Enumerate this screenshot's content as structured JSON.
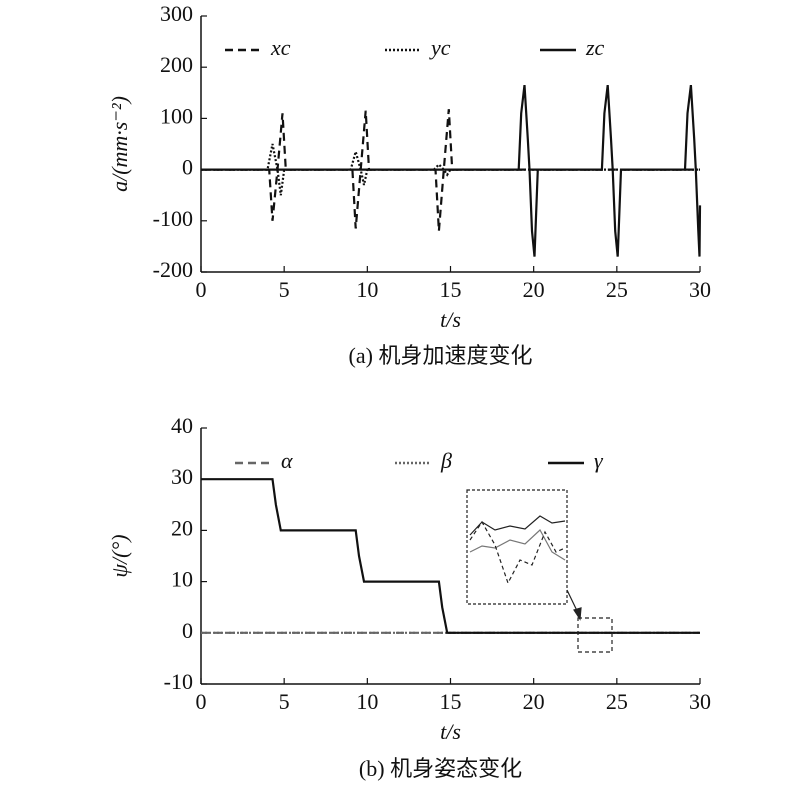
{
  "chart_data": [
    {
      "type": "line",
      "title": "(a) 机身加速度变化",
      "x_label": "t/s",
      "y_label": "a/(mm·s⁻²)",
      "xlim": [
        0,
        30
      ],
      "xticks": [
        0,
        5,
        10,
        15,
        20,
        25,
        30
      ],
      "ylim": [
        -200,
        300
      ],
      "yticks": [
        -200,
        -100,
        0,
        100,
        200,
        300
      ],
      "series": [
        {
          "name": "xc",
          "color": "#111111",
          "style": "dashed",
          "x": [
            0,
            4.1,
            4.3,
            4.6,
            4.9,
            5.1,
            9.1,
            9.3,
            9.6,
            9.9,
            10.1,
            14.1,
            14.3,
            14.6,
            14.9,
            15.1,
            30
          ],
          "values": [
            0,
            0,
            -100,
            0,
            110,
            0,
            0,
            -115,
            0,
            115,
            0,
            0,
            -120,
            0,
            118,
            0,
            0
          ]
        },
        {
          "name": "yc",
          "color": "#111111",
          "style": "dotted",
          "x": [
            0,
            4.0,
            4.3,
            4.6,
            4.8,
            5.0,
            9.0,
            9.3,
            9.6,
            9.8,
            10.0,
            14.0,
            14.3,
            14.6,
            14.8,
            15.0,
            30
          ],
          "values": [
            0,
            0,
            50,
            0,
            -50,
            0,
            0,
            35,
            0,
            -30,
            0,
            0,
            10,
            0,
            -10,
            0,
            0
          ]
        },
        {
          "name": "zc",
          "color": "#111111",
          "style": "solid",
          "x": [
            0,
            19.1,
            19.25,
            19.45,
            19.65,
            19.75,
            19.9,
            20.05,
            20.25,
            24.1,
            24.25,
            24.45,
            24.65,
            24.75,
            24.9,
            25.05,
            25.25,
            29.1,
            29.25,
            29.45,
            29.65,
            29.75,
            29.9,
            29.97,
            30
          ],
          "values": [
            0,
            0,
            110,
            165,
            60,
            0,
            -120,
            -170,
            0,
            0,
            110,
            165,
            60,
            0,
            -120,
            -170,
            0,
            0,
            110,
            165,
            60,
            0,
            -120,
            -170,
            -70
          ]
        }
      ]
    },
    {
      "type": "line",
      "title": "(b) 机身姿态变化",
      "x_label": "t/s",
      "y_label": "ψ/(°)",
      "xlim": [
        0,
        30
      ],
      "xticks": [
        0,
        5,
        10,
        15,
        20,
        25,
        30
      ],
      "ylim": [
        -10,
        40
      ],
      "yticks": [
        -10,
        0,
        10,
        20,
        30,
        40
      ],
      "series": [
        {
          "name": "α",
          "color": "#666666",
          "style": "dashed",
          "x": [
            0,
            30
          ],
          "values": [
            0,
            0
          ]
        },
        {
          "name": "β",
          "color": "#666666",
          "style": "dotted",
          "x": [
            0,
            30
          ],
          "values": [
            0,
            0
          ]
        },
        {
          "name": "γ",
          "color": "#111111",
          "style": "solid",
          "x": [
            0,
            4.3,
            4.5,
            4.8,
            9.3,
            9.5,
            9.8,
            14.3,
            14.5,
            14.8,
            30
          ],
          "values": [
            30,
            30,
            25,
            20,
            20,
            15,
            10,
            10,
            5,
            0,
            0
          ]
        }
      ]
    }
  ]
}
